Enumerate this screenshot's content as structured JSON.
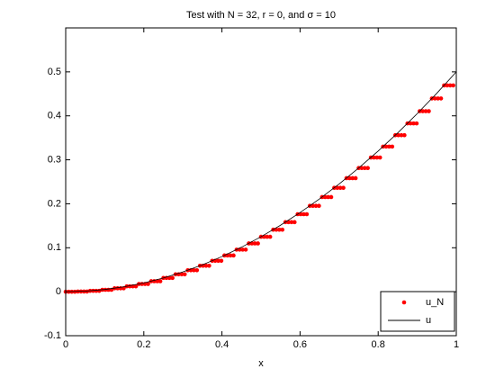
{
  "chart_data": {
    "type": "line",
    "title": "Test with N = 32, r = 0, and σ = 10",
    "x_label": "x",
    "xlim": [
      0,
      1
    ],
    "ylim": [
      -0.1,
      0.6
    ],
    "xticks": [
      0,
      0.2,
      0.4,
      0.6,
      0.8,
      1
    ],
    "yticks": [
      -0.1,
      0,
      0.1,
      0.2,
      0.3,
      0.4,
      0.5
    ],
    "legend": "lower right",
    "series": [
      {
        "name": "u_N",
        "color": "#ff0000",
        "mode": "markers",
        "x": [
          0,
          0.0078,
          0.0156,
          0.0234,
          0.0313,
          0.0391,
          0.0469,
          0.0547,
          0.0625,
          0.0703,
          0.0781,
          0.0859,
          0.0938,
          0.1016,
          0.1094,
          0.1172,
          0.125,
          0.1328,
          0.1406,
          0.1484,
          0.1563,
          0.1641,
          0.1719,
          0.1797,
          0.1875,
          0.1953,
          0.2031,
          0.2109,
          0.2188,
          0.2266,
          0.2344,
          0.2422,
          0.25,
          0.2578,
          0.2656,
          0.2734,
          0.2813,
          0.2891,
          0.2969,
          0.3047,
          0.3125,
          0.3203,
          0.3281,
          0.3359,
          0.3438,
          0.3516,
          0.3594,
          0.3672,
          0.375,
          0.3828,
          0.3906,
          0.3984,
          0.4063,
          0.4141,
          0.4219,
          0.4297,
          0.4375,
          0.4453,
          0.4531,
          0.4609,
          0.4688,
          0.4766,
          0.4844,
          0.4922,
          0.5,
          0.5078,
          0.5156,
          0.5234,
          0.5313,
          0.5391,
          0.5469,
          0.5547,
          0.5625,
          0.5703,
          0.5781,
          0.5859,
          0.5938,
          0.6016,
          0.6094,
          0.6172,
          0.625,
          0.6328,
          0.6406,
          0.6484,
          0.6563,
          0.6641,
          0.6719,
          0.6797,
          0.6875,
          0.6953,
          0.7031,
          0.7109,
          0.7188,
          0.7266,
          0.7344,
          0.7422,
          0.75,
          0.7578,
          0.7656,
          0.7734,
          0.7813,
          0.7891,
          0.7969,
          0.8047,
          0.8125,
          0.8203,
          0.8281,
          0.8359,
          0.8438,
          0.8516,
          0.8594,
          0.8672,
          0.875,
          0.8828,
          0.8906,
          0.8984,
          0.9063,
          0.9141,
          0.9219,
          0.9297,
          0.9375,
          0.9453,
          0.9531,
          0.9609,
          0.9688,
          0.9766,
          0.9844,
          0.9922
        ],
        "values": [
          0,
          0,
          0,
          0,
          0.0005,
          0.0005,
          0.0005,
          0.0005,
          0.002,
          0.002,
          0.002,
          0.002,
          0.0044,
          0.0044,
          0.0044,
          0.0044,
          0.0078,
          0.0078,
          0.0078,
          0.0078,
          0.0122,
          0.0122,
          0.0122,
          0.0122,
          0.0176,
          0.0176,
          0.0176,
          0.0176,
          0.0239,
          0.0239,
          0.0239,
          0.0239,
          0.0313,
          0.0313,
          0.0313,
          0.0313,
          0.0396,
          0.0396,
          0.0396,
          0.0396,
          0.0488,
          0.0488,
          0.0488,
          0.0488,
          0.0591,
          0.0591,
          0.0591,
          0.0591,
          0.0703,
          0.0703,
          0.0703,
          0.0703,
          0.0825,
          0.0825,
          0.0825,
          0.0825,
          0.0957,
          0.0957,
          0.0957,
          0.0957,
          0.1099,
          0.1099,
          0.1099,
          0.1099,
          0.125,
          0.125,
          0.125,
          0.125,
          0.1411,
          0.1411,
          0.1411,
          0.1411,
          0.1582,
          0.1582,
          0.1582,
          0.1582,
          0.1763,
          0.1763,
          0.1763,
          0.1763,
          0.1953,
          0.1953,
          0.1953,
          0.1953,
          0.2153,
          0.2153,
          0.2153,
          0.2153,
          0.2363,
          0.2363,
          0.2363,
          0.2363,
          0.2583,
          0.2583,
          0.2583,
          0.2583,
          0.2813,
          0.2813,
          0.2813,
          0.2813,
          0.3052,
          0.3052,
          0.3052,
          0.3052,
          0.3301,
          0.3301,
          0.3301,
          0.3301,
          0.356,
          0.356,
          0.356,
          0.356,
          0.3828,
          0.3828,
          0.3828,
          0.3828,
          0.4106,
          0.4106,
          0.4106,
          0.4106,
          0.4395,
          0.4395,
          0.4395,
          0.4395,
          0.4692,
          0.4692,
          0.4692,
          0.4692
        ]
      },
      {
        "name": "u",
        "color": "#000000",
        "mode": "line",
        "x": [
          0,
          0.05,
          0.1,
          0.15,
          0.2,
          0.25,
          0.3,
          0.35,
          0.4,
          0.45,
          0.5,
          0.55,
          0.6,
          0.65,
          0.7,
          0.75,
          0.8,
          0.85,
          0.9,
          0.95,
          1
        ],
        "values": [
          0,
          0.00125,
          0.005,
          0.01125,
          0.02,
          0.03125,
          0.045,
          0.06125,
          0.08,
          0.10125,
          0.125,
          0.15125,
          0.18,
          0.21125,
          0.245,
          0.28125,
          0.32,
          0.36125,
          0.405,
          0.45125,
          0.5
        ]
      }
    ]
  }
}
